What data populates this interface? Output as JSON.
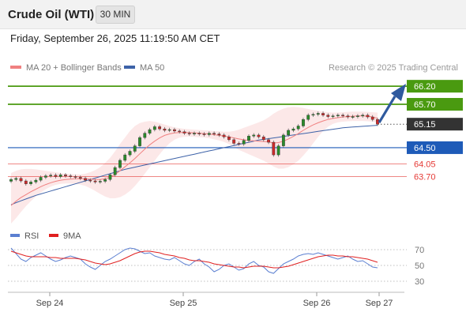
{
  "header": {
    "title": "Crude Oil (WTI)",
    "timeframe": "30 MIN",
    "timestamp": "Friday, September 26, 2025 11:19:50 AM CET"
  },
  "legend": {
    "bollinger_label": "MA 20 + Bollinger Bands",
    "bollinger_color": "#f08080",
    "ma50_label": "MA 50",
    "ma50_color": "#3d62a8",
    "credit": "Research © 2025 Trading Central"
  },
  "rsi_legend": {
    "rsi_label": "RSI",
    "rsi_color": "#5b7fd1",
    "ma9_label": "9MA",
    "ma9_color": "#e02020"
  },
  "chart_data": [
    {
      "type": "candlestick",
      "title": "",
      "xlabel": "",
      "ylabel": "",
      "x_ticks": [
        "Sep 24",
        "Sep 25",
        "Sep 26",
        "Sep 27"
      ],
      "ylim": [
        62.4,
        66.4
      ],
      "grid": false,
      "legend_position": "top-left",
      "levels": [
        {
          "label": "66.20",
          "value": 66.2,
          "style": "resistance",
          "color": "#4a9a10"
        },
        {
          "label": "65.70",
          "value": 65.7,
          "style": "resistance",
          "color": "#4a9a10"
        },
        {
          "label": "65.15",
          "value": 65.15,
          "style": "last-price",
          "color": "#333333"
        },
        {
          "label": "64.50",
          "value": 64.5,
          "style": "pivot",
          "color": "#1e5bb8"
        },
        {
          "label": "64.05",
          "value": 64.05,
          "style": "support",
          "color": "#e53935"
        },
        {
          "label": "63.70",
          "value": 63.7,
          "style": "support",
          "color": "#e53935"
        }
      ],
      "series": [
        {
          "name": "Price",
          "kind": "close",
          "values": [
            63.62,
            63.65,
            63.58,
            63.5,
            63.55,
            63.6,
            63.68,
            63.72,
            63.74,
            63.7,
            63.75,
            63.72,
            63.7,
            63.68,
            63.65,
            63.6,
            63.58,
            63.55,
            63.57,
            63.62,
            63.75,
            63.95,
            64.15,
            64.3,
            64.4,
            64.55,
            64.78,
            64.9,
            65.0,
            65.08,
            65.02,
            64.98,
            65.0,
            64.96,
            64.94,
            64.9,
            64.88,
            64.9,
            64.88,
            64.86,
            64.9,
            64.88,
            64.85,
            64.8,
            64.72,
            64.62,
            64.6,
            64.7,
            64.82,
            64.85,
            64.8,
            64.72,
            64.65,
            64.3,
            64.55,
            64.85,
            64.98,
            65.02,
            65.1,
            65.28,
            65.4,
            65.42,
            65.45,
            65.4,
            65.36,
            65.38,
            65.4,
            65.38,
            65.35,
            65.36,
            65.38,
            65.4,
            65.35,
            65.28,
            65.15
          ]
        },
        {
          "name": "MA 20",
          "kind": "ma20",
          "values": [
            62.9,
            63.02,
            63.12,
            63.2,
            63.28,
            63.35,
            63.42,
            63.48,
            63.53,
            63.57,
            63.6,
            63.62,
            63.63,
            63.64,
            63.64,
            63.64,
            63.63,
            63.62,
            63.62,
            63.64,
            63.68,
            63.76,
            63.86,
            63.97,
            64.08,
            64.2,
            64.33,
            64.46,
            64.58,
            64.68,
            64.77,
            64.84,
            64.88,
            64.91,
            64.92,
            64.92,
            64.92,
            64.91,
            64.9,
            64.89,
            64.88,
            64.86,
            64.84,
            64.82,
            64.8,
            64.77,
            64.74,
            64.72,
            64.7,
            64.69,
            64.68,
            64.67,
            64.66,
            64.63,
            64.64,
            64.68,
            64.74,
            64.81,
            64.89,
            64.98,
            65.06,
            65.13,
            65.19,
            65.24,
            65.28,
            65.31,
            65.33,
            65.35,
            65.36,
            65.37,
            65.38,
            65.38,
            65.37,
            65.35,
            65.31
          ]
        },
        {
          "name": "Upper Bollinger",
          "kind": "bb_upper",
          "values": [
            63.8,
            63.86,
            63.9,
            63.91,
            63.91,
            63.9,
            63.88,
            63.86,
            63.84,
            63.82,
            63.8,
            63.78,
            63.77,
            63.76,
            63.76,
            63.78,
            63.82,
            63.88,
            63.96,
            64.08,
            64.22,
            64.4,
            64.6,
            64.78,
            64.96,
            65.1,
            65.18,
            65.22,
            65.24,
            65.22,
            65.18,
            65.14,
            65.1,
            65.06,
            65.04,
            65.02,
            65.01,
            65.0,
            64.99,
            64.98,
            64.97,
            64.96,
            64.95,
            64.94,
            64.94,
            64.96,
            65.0,
            65.05,
            65.1,
            65.15,
            65.2,
            65.26,
            65.34,
            65.44,
            65.52,
            65.58,
            65.62,
            65.63,
            65.62,
            65.6,
            65.57,
            65.54,
            65.52,
            65.5,
            65.48,
            65.47,
            65.47,
            65.48,
            65.49,
            65.5,
            65.5,
            65.5,
            65.49,
            65.48,
            65.47
          ]
        },
        {
          "name": "Lower Bollinger",
          "kind": "bb_lower",
          "values": [
            62.4,
            62.55,
            62.72,
            62.88,
            63.02,
            63.15,
            63.26,
            63.35,
            63.42,
            63.47,
            63.5,
            63.51,
            63.51,
            63.5,
            63.48,
            63.44,
            63.38,
            63.3,
            63.22,
            63.15,
            63.1,
            63.1,
            63.13,
            63.2,
            63.3,
            63.44,
            63.6,
            63.78,
            63.96,
            64.14,
            64.32,
            64.48,
            64.62,
            64.72,
            64.78,
            64.8,
            64.81,
            64.8,
            64.79,
            64.78,
            64.76,
            64.73,
            64.7,
            64.66,
            64.6,
            64.52,
            64.44,
            64.38,
            64.32,
            64.26,
            64.2,
            64.14,
            64.06,
            63.98,
            63.92,
            63.92,
            63.96,
            64.04,
            64.14,
            64.28,
            64.44,
            64.62,
            64.8,
            64.96,
            65.08,
            65.16,
            65.2,
            65.22,
            65.23,
            65.24,
            65.24,
            65.24,
            65.23,
            65.22,
            65.2
          ]
        },
        {
          "name": "MA 50",
          "kind": "ma50",
          "values": [
            62.92,
            62.98,
            63.03,
            63.08,
            63.13,
            63.18,
            63.22,
            63.26,
            63.3,
            63.34,
            63.38,
            63.42,
            63.46,
            63.5,
            63.54,
            63.58,
            63.62,
            63.66,
            63.7,
            63.74,
            63.78,
            63.82,
            63.86,
            63.9,
            63.93,
            63.96,
            63.99,
            64.02,
            64.05,
            64.08,
            64.11,
            64.14,
            64.17,
            64.2,
            64.23,
            64.26,
            64.29,
            64.32,
            64.35,
            64.38,
            64.41,
            64.44,
            64.47,
            64.5,
            64.53,
            64.56,
            64.59,
            64.62,
            64.65,
            64.68,
            64.71,
            64.73,
            64.75,
            64.77,
            64.79,
            64.81,
            64.83,
            64.85,
            64.87,
            64.89,
            64.91,
            64.93,
            64.95,
            64.97,
            64.99,
            65.01,
            65.03,
            65.05,
            65.06,
            65.07,
            65.08,
            65.09,
            65.1,
            65.11,
            65.12
          ]
        }
      ]
    },
    {
      "type": "line",
      "title": "",
      "ylim": [
        20,
        80
      ],
      "y_ticks": [
        "70",
        "50",
        "30"
      ],
      "series": [
        {
          "name": "RSI",
          "values": [
            72,
            65,
            58,
            55,
            60,
            63,
            66,
            62,
            58,
            55,
            57,
            60,
            62,
            60,
            58,
            52,
            48,
            45,
            50,
            55,
            58,
            62,
            66,
            70,
            72,
            71,
            68,
            65,
            66,
            62,
            60,
            58,
            57,
            60,
            56,
            52,
            50,
            55,
            58,
            52,
            48,
            42,
            45,
            50,
            52,
            48,
            44,
            46,
            52,
            55,
            50,
            48,
            42,
            40,
            46,
            52,
            55,
            58,
            62,
            64,
            65,
            64,
            66,
            64,
            62,
            60,
            58,
            60,
            62,
            58,
            55,
            56,
            52,
            48,
            47
          ]
        },
        {
          "name": "9MA",
          "values": [
            68,
            66,
            64,
            62,
            61,
            61,
            61,
            61,
            60,
            60,
            59,
            59,
            59,
            59,
            58,
            57,
            55,
            53,
            52,
            51,
            52,
            54,
            56,
            59,
            62,
            65,
            67,
            68,
            68,
            67,
            66,
            64,
            63,
            62,
            60,
            59,
            57,
            56,
            56,
            55,
            54,
            52,
            51,
            50,
            49,
            48,
            48,
            47,
            48,
            49,
            49,
            49,
            48,
            47,
            47,
            48,
            49,
            51,
            53,
            55,
            57,
            59,
            61,
            62,
            63,
            63,
            62,
            62,
            61,
            61,
            60,
            59,
            58,
            56,
            54
          ]
        }
      ]
    }
  ]
}
